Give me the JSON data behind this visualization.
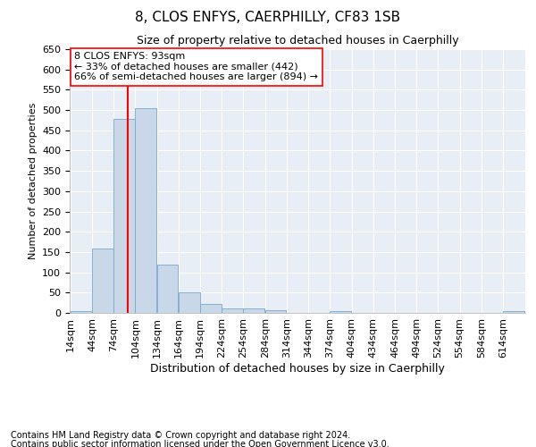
{
  "title": "8, CLOS ENFYS, CAERPHILLY, CF83 1SB",
  "subtitle": "Size of property relative to detached houses in Caerphilly",
  "xlabel": "Distribution of detached houses by size in Caerphilly",
  "ylabel": "Number of detached properties",
  "bar_color": "#c8d8e8",
  "bar_edge_color": "#7aa8c8",
  "background_color": "#e8eef5",
  "grid_color": "#ffffff",
  "ylim": [
    0,
    650
  ],
  "yticks": [
    0,
    50,
    100,
    150,
    200,
    250,
    300,
    350,
    400,
    450,
    500,
    550,
    600,
    650
  ],
  "categories": [
    "14sqm",
    "44sqm",
    "74sqm",
    "104sqm",
    "134sqm",
    "164sqm",
    "194sqm",
    "224sqm",
    "254sqm",
    "284sqm",
    "314sqm",
    "344sqm",
    "374sqm",
    "404sqm",
    "434sqm",
    "464sqm",
    "494sqm",
    "524sqm",
    "554sqm",
    "584sqm",
    "614sqm"
  ],
  "values": [
    4,
    158,
    478,
    505,
    120,
    50,
    22,
    12,
    10,
    7,
    0,
    0,
    4,
    0,
    0,
    0,
    0,
    0,
    0,
    0,
    4
  ],
  "bin_width": 30,
  "bin_starts": [
    14,
    44,
    74,
    104,
    134,
    164,
    194,
    224,
    254,
    284,
    314,
    344,
    374,
    404,
    434,
    464,
    494,
    524,
    554,
    584,
    614
  ],
  "red_line_x": 93,
  "annotation_title": "8 CLOS ENFYS: 93sqm",
  "annotation_line1": "← 33% of detached houses are smaller (442)",
  "annotation_line2": "66% of semi-detached houses are larger (894) →",
  "footer_line1": "Contains HM Land Registry data © Crown copyright and database right 2024.",
  "footer_line2": "Contains public sector information licensed under the Open Government Licence v3.0.",
  "title_fontsize": 11,
  "subtitle_fontsize": 9,
  "annotation_fontsize": 8,
  "footer_fontsize": 7,
  "ylabel_fontsize": 8,
  "xlabel_fontsize": 9,
  "tick_fontsize": 8
}
